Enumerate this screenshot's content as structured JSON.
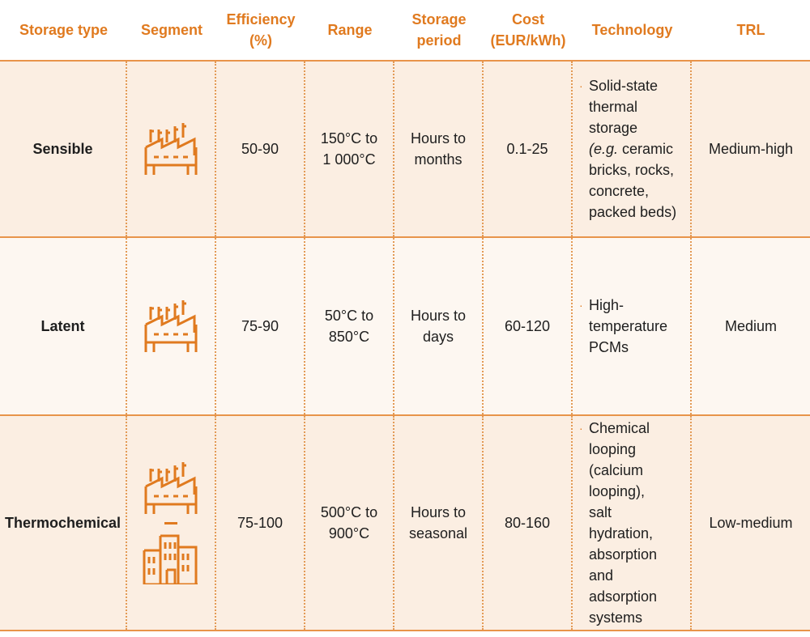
{
  "headers": {
    "storage_type": "Storage type",
    "segment": "Segment",
    "efficiency": "Efficiency\n(%)",
    "range": "Range",
    "storage_period": "Storage\nperiod",
    "cost": "Cost\n(EUR/kWh)",
    "technology": "Technology",
    "trl": "TRL"
  },
  "rows": [
    {
      "storage_type": "Sensible",
      "segment_icons": [
        "industry-icon"
      ],
      "efficiency": "50-90",
      "range": "150°C to\n1 000°C",
      "storage_period": "Hours to\nmonths",
      "cost": "0.1-25",
      "technology_bullet": "·",
      "technology_pre": "Solid-state\nthermal\nstorage\n",
      "technology_eg": "(e.g.",
      "technology_post": " ceramic\nbricks, rocks,\nconcrete,\npacked beds)",
      "trl": "Medium-high"
    },
    {
      "storage_type": "Latent",
      "segment_icons": [
        "industry-icon"
      ],
      "efficiency": "75-90",
      "range": "50°C to\n850°C",
      "storage_period": "Hours to\ndays",
      "cost": "60-120",
      "technology_bullet": "·",
      "technology": "High-\ntemperature\nPCMs",
      "trl": "Medium"
    },
    {
      "storage_type": "Thermochemical",
      "segment_icons": [
        "industry-icon",
        "buildings-icon"
      ],
      "efficiency": "75-100",
      "range": "500°C to\n900°C",
      "storage_period": "Hours to\nseasonal",
      "cost": "80-160",
      "technology_bullet": "·",
      "technology": "Chemical\nlooping\n(calcium\nlooping),\nsalt\nhydration,\nabsorption\nand\nadsorption\nsystems",
      "trl": "Low-medium"
    }
  ],
  "colors": {
    "accent": "#e07a1f",
    "row_shade": "#fbeee2",
    "row_light": "#fdf7f1",
    "divider": "#e8944a"
  }
}
